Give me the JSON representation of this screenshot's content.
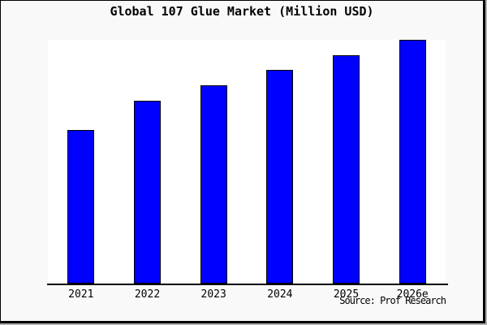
{
  "page": {
    "background": "#f9f9f9",
    "plot_background": "#ffffff",
    "frame_border_color": "#000000",
    "bevel_color": "#b0b0b0"
  },
  "chart_data": {
    "type": "bar",
    "title": "Global 107 Glue Market (Million USD)",
    "categories": [
      "2021",
      "2022",
      "2023",
      "2024",
      "2025",
      "2026e"
    ],
    "values": [
      62.9,
      75.1,
      81.5,
      87.7,
      93.7,
      100
    ],
    "values_note": "no y-axis scale or data labels are shown in the image; values are relative bar heights with 2026e = 100",
    "xlabel": "",
    "ylabel": "",
    "ylim": [
      0,
      100
    ],
    "grid": false,
    "legend": false,
    "bar_color": "#0000ff",
    "bar_edge_color": "#000000",
    "source": "Source: Prof Research"
  }
}
